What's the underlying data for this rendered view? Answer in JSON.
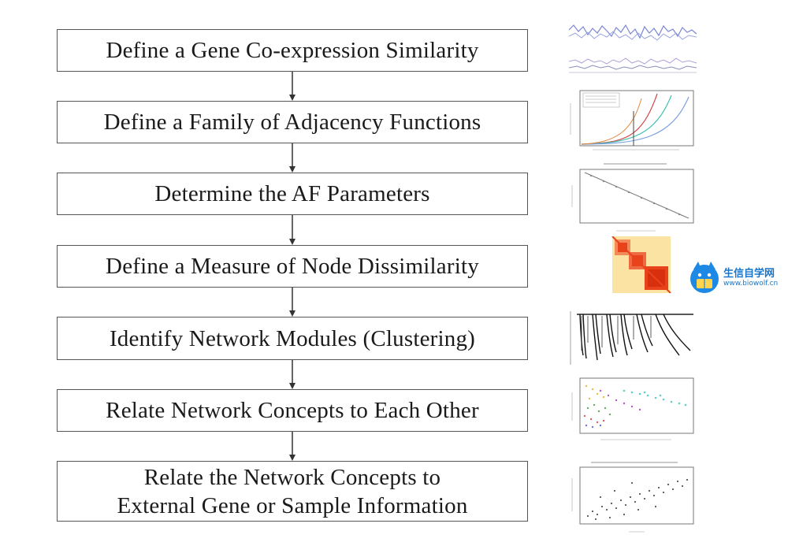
{
  "steps": [
    {
      "lines": [
        "Define a Gene Co-expression Similarity"
      ]
    },
    {
      "lines": [
        "Define a Family of Adjacency Functions"
      ]
    },
    {
      "lines": [
        "Determine the AF Parameters"
      ]
    },
    {
      "lines": [
        "Define a Measure of Node Dissimilarity"
      ]
    },
    {
      "lines": [
        "Identify Network Modules (Clustering)"
      ]
    },
    {
      "lines": [
        "Relate Network Concepts to Each Other"
      ]
    },
    {
      "lines": [
        "Relate the Network Concepts to",
        "External Gene or Sample Information"
      ]
    }
  ],
  "watermark": {
    "title": "生信自学网",
    "url": "www.biowolf.cn",
    "color": "#1976c9"
  },
  "colors": {
    "box_border": "#555555",
    "arrow": "#333333",
    "heatmap": "#e8431a",
    "heatmap_bg": "#fbe3a4"
  }
}
